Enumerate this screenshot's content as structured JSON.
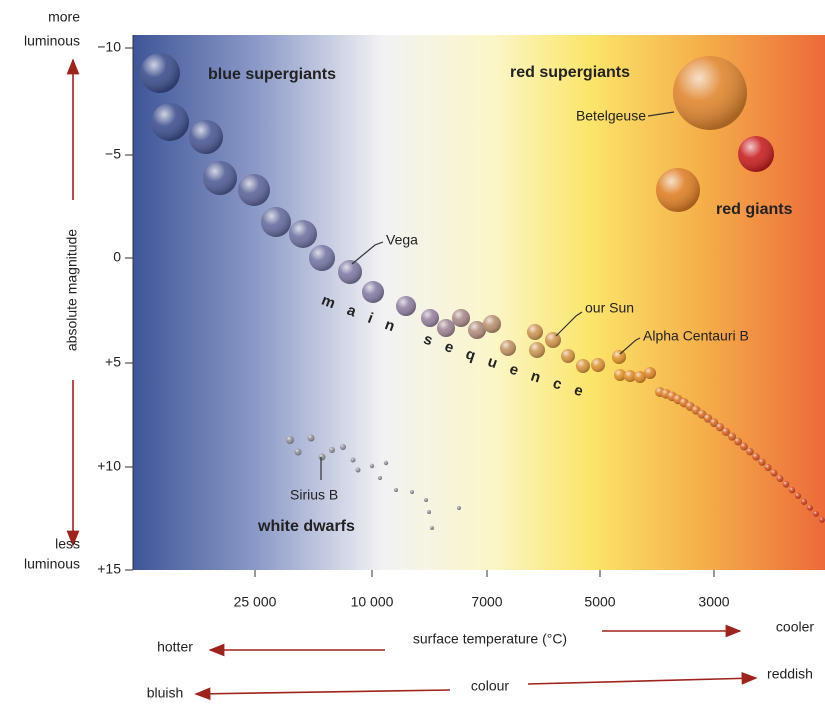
{
  "y_axis": {
    "title": "absolute magnitude",
    "top_label": [
      "more",
      "luminous"
    ],
    "bottom_label": [
      "less",
      "luminous"
    ],
    "ticks": [
      "−10",
      "−5",
      "0",
      "+5",
      "+10",
      "+15"
    ]
  },
  "x_axis": {
    "ticks": [
      "25 000",
      "10 000",
      "7000",
      "5000",
      "3000"
    ]
  },
  "regions": {
    "blue_supergiants": "blue supergiants",
    "red_supergiants": "red supergiants",
    "red_giants": "red giants",
    "main_sequence": "main sequence",
    "white_dwarfs": "white dwarfs"
  },
  "stars": {
    "vega": "Vega",
    "sun": "our Sun",
    "alpha_centauri_b": "Alpha Centauri B",
    "betelgeuse": "Betelgeuse",
    "sirius_b": "Sirius B"
  },
  "temperature_row": {
    "left": "hotter",
    "middle": "surface temperature (°C)",
    "right": "cooler"
  },
  "colour_row": {
    "left": "bluish",
    "middle": "colour",
    "right": "reddish"
  }
}
